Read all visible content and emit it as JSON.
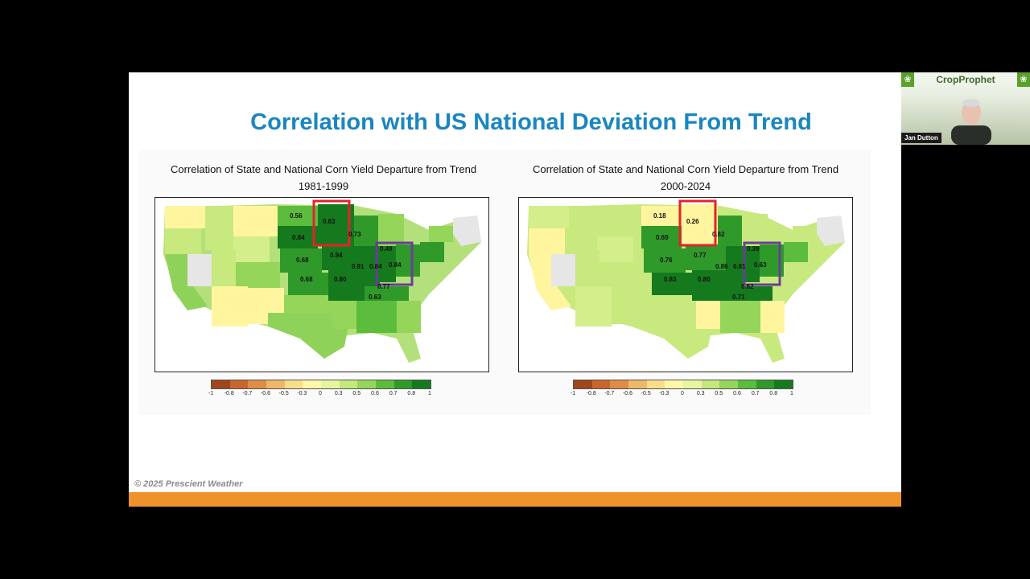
{
  "slide": {
    "title": "Correlation with US National Deviation From Trend",
    "copyright": "© 2025 Prescient Weather"
  },
  "maps": [
    {
      "title": "Correlation of State and National Corn Yield Departure from Trend",
      "period": "1981-1999",
      "labels": [
        "0.56",
        "0.83",
        "0.84",
        "0.73",
        "0.49",
        "0.94",
        "0.68",
        "0.91",
        "0.84",
        "0.84",
        "0.68",
        "0.80",
        "0.77",
        "0.63"
      ]
    },
    {
      "title": "Correlation of State and National Corn Yield Departure from Trend",
      "period": "2000-2024",
      "labels": [
        "0.18",
        "0.26",
        "0.69",
        "0.62",
        "0.39",
        "0.77",
        "0.76",
        "0.86",
        "0.81",
        "0.63",
        "0.83",
        "0.80",
        "0.62",
        "0.71"
      ]
    }
  ],
  "legend": {
    "ticks": [
      "-1",
      "-0.8",
      "-0.7",
      "-0.6",
      "-0.5",
      "-0.3",
      "0",
      "0.3",
      "0.5",
      "0.6",
      "0.7",
      "0.8",
      "1"
    ],
    "colors": [
      "#a0461c",
      "#c8662e",
      "#df8c44",
      "#efb866",
      "#f8de8a",
      "#fff7a8",
      "#e8f5a0",
      "#c4e87c",
      "#94d55a",
      "#5cbc3e",
      "#2f9a2a",
      "#157a1e"
    ]
  },
  "video": {
    "brand": "CropProphet",
    "participant": "Jan Dutton"
  }
}
